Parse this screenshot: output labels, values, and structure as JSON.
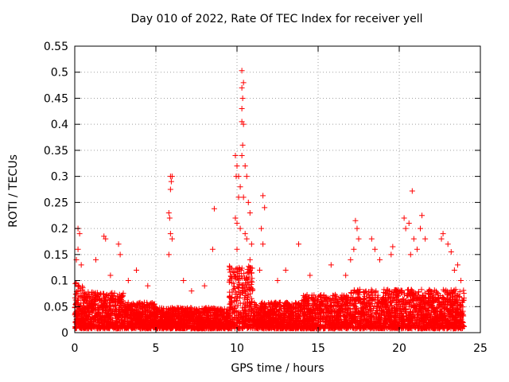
{
  "chart_data": {
    "type": "scatter",
    "title": "Day 010 of 2022, Rate Of TEC Index for receiver yell",
    "xlabel": "GPS time / hours",
    "ylabel": "ROTI / TECUs",
    "xlim": [
      0,
      25
    ],
    "ylim": [
      0,
      0.55
    ],
    "xticks": [
      "0",
      "5",
      "10",
      "15",
      "20",
      "25"
    ],
    "yticks": [
      "0",
      "0.05",
      "0.1",
      "0.15",
      "0.2",
      "0.25",
      "0.3",
      "0.35",
      "0.4",
      "0.45",
      "0.5",
      "0.55"
    ],
    "grid": true,
    "marker": "+",
    "color": "#ff0000",
    "x_extent": [
      0,
      24
    ],
    "series": [
      {
        "points": [
          [
            0.2,
            0.2
          ],
          [
            0.3,
            0.19
          ],
          [
            0.2,
            0.16
          ],
          [
            0.1,
            0.14
          ],
          [
            0.4,
            0.13
          ],
          [
            1.8,
            0.185
          ],
          [
            1.9,
            0.18
          ],
          [
            2.7,
            0.17
          ],
          [
            2.8,
            0.15
          ],
          [
            1.3,
            0.14
          ],
          [
            3.8,
            0.12
          ],
          [
            5.9,
            0.3
          ],
          [
            5.95,
            0.29
          ],
          [
            6.0,
            0.3
          ],
          [
            5.9,
            0.275
          ],
          [
            5.8,
            0.23
          ],
          [
            5.85,
            0.22
          ],
          [
            5.9,
            0.19
          ],
          [
            6.0,
            0.18
          ],
          [
            5.8,
            0.15
          ],
          [
            8.6,
            0.238
          ],
          [
            8.5,
            0.16
          ],
          [
            9.9,
            0.34
          ],
          [
            10.0,
            0.32
          ],
          [
            9.95,
            0.3
          ],
          [
            10.1,
            0.3
          ],
          [
            10.3,
            0.503
          ],
          [
            10.3,
            0.47
          ],
          [
            10.4,
            0.48
          ],
          [
            10.35,
            0.45
          ],
          [
            10.3,
            0.43
          ],
          [
            10.3,
            0.405
          ],
          [
            10.4,
            0.4
          ],
          [
            10.35,
            0.36
          ],
          [
            10.3,
            0.34
          ],
          [
            10.5,
            0.32
          ],
          [
            10.6,
            0.3
          ],
          [
            10.2,
            0.28
          ],
          [
            10.1,
            0.26
          ],
          [
            10.4,
            0.26
          ],
          [
            10.7,
            0.25
          ],
          [
            10.8,
            0.23
          ],
          [
            9.9,
            0.22
          ],
          [
            10.0,
            0.21
          ],
          [
            10.2,
            0.2
          ],
          [
            10.5,
            0.19
          ],
          [
            10.6,
            0.18
          ],
          [
            10.9,
            0.17
          ],
          [
            10.0,
            0.16
          ],
          [
            10.8,
            0.14
          ],
          [
            11.6,
            0.263
          ],
          [
            11.7,
            0.24
          ],
          [
            11.5,
            0.2
          ],
          [
            11.6,
            0.17
          ],
          [
            11.4,
            0.12
          ],
          [
            13.8,
            0.17
          ],
          [
            13.0,
            0.12
          ],
          [
            15.8,
            0.13
          ],
          [
            16.7,
            0.11
          ],
          [
            17.3,
            0.215
          ],
          [
            17.4,
            0.2
          ],
          [
            17.5,
            0.18
          ],
          [
            17.2,
            0.16
          ],
          [
            17.0,
            0.14
          ],
          [
            18.3,
            0.18
          ],
          [
            18.5,
            0.16
          ],
          [
            19.6,
            0.165
          ],
          [
            19.5,
            0.15
          ],
          [
            18.8,
            0.14
          ],
          [
            20.3,
            0.22
          ],
          [
            20.4,
            0.2
          ],
          [
            20.6,
            0.21
          ],
          [
            20.8,
            0.272
          ],
          [
            20.9,
            0.18
          ],
          [
            21.4,
            0.225
          ],
          [
            21.3,
            0.2
          ],
          [
            21.6,
            0.18
          ],
          [
            21.1,
            0.16
          ],
          [
            20.7,
            0.15
          ],
          [
            22.6,
            0.18
          ],
          [
            22.7,
            0.19
          ],
          [
            23.0,
            0.17
          ],
          [
            23.2,
            0.155
          ],
          [
            23.4,
            0.12
          ],
          [
            23.6,
            0.13
          ],
          [
            23.8,
            0.1
          ],
          [
            12.5,
            0.1
          ],
          [
            14.5,
            0.11
          ],
          [
            8.0,
            0.09
          ],
          [
            7.2,
            0.08
          ],
          [
            4.5,
            0.09
          ],
          [
            3.3,
            0.1
          ],
          [
            2.2,
            0.11
          ],
          [
            6.7,
            0.1
          ]
        ]
      }
    ]
  }
}
